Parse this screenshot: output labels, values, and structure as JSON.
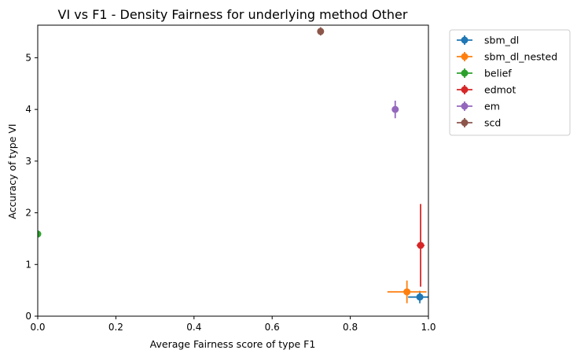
{
  "chart_data": {
    "type": "scatter",
    "title": "VI vs F1 - Density Fairness for underlying method Other",
    "xlabel": "Average Fairness score of type F1",
    "ylabel": "Accuracy of type VI",
    "xlim": [
      0.0,
      1.0
    ],
    "ylim": [
      0.0,
      5.63
    ],
    "xticks": [
      "0.0",
      "0.2",
      "0.4",
      "0.6",
      "0.8",
      "1.0"
    ],
    "xtick_values": [
      0.0,
      0.2,
      0.4,
      0.6,
      0.8,
      1.0
    ],
    "yticks": [
      "0",
      "1",
      "2",
      "3",
      "4",
      "5"
    ],
    "ytick_values": [
      0,
      1,
      2,
      3,
      4,
      5
    ],
    "grid": false,
    "legend_placement": "outside-top-right",
    "series": [
      {
        "name": "sbm_dl",
        "color": "#1f77b4",
        "x": 0.978,
        "y": 0.37,
        "xerr": 0.03,
        "yerr": 0.12
      },
      {
        "name": "sbm_dl_nested",
        "color": "#ff7f0e",
        "x": 0.945,
        "y": 0.47,
        "xerr": 0.05,
        "yerr": 0.22
      },
      {
        "name": "belief",
        "color": "#2ca02c",
        "x": 0.0,
        "y": 1.59,
        "xerr": 0,
        "yerr": 0
      },
      {
        "name": "edmot",
        "color": "#d62728",
        "x": 0.98,
        "y": 1.37,
        "xerr": 0.01,
        "yerr": 0.8
      },
      {
        "name": "em",
        "color": "#9467bd",
        "x": 0.915,
        "y": 4.0,
        "xerr": 0.005,
        "yerr": 0.17
      },
      {
        "name": "scd",
        "color": "#8c564b",
        "x": 0.724,
        "y": 5.51,
        "xerr": 0.003,
        "yerr": 0.08
      }
    ]
  }
}
